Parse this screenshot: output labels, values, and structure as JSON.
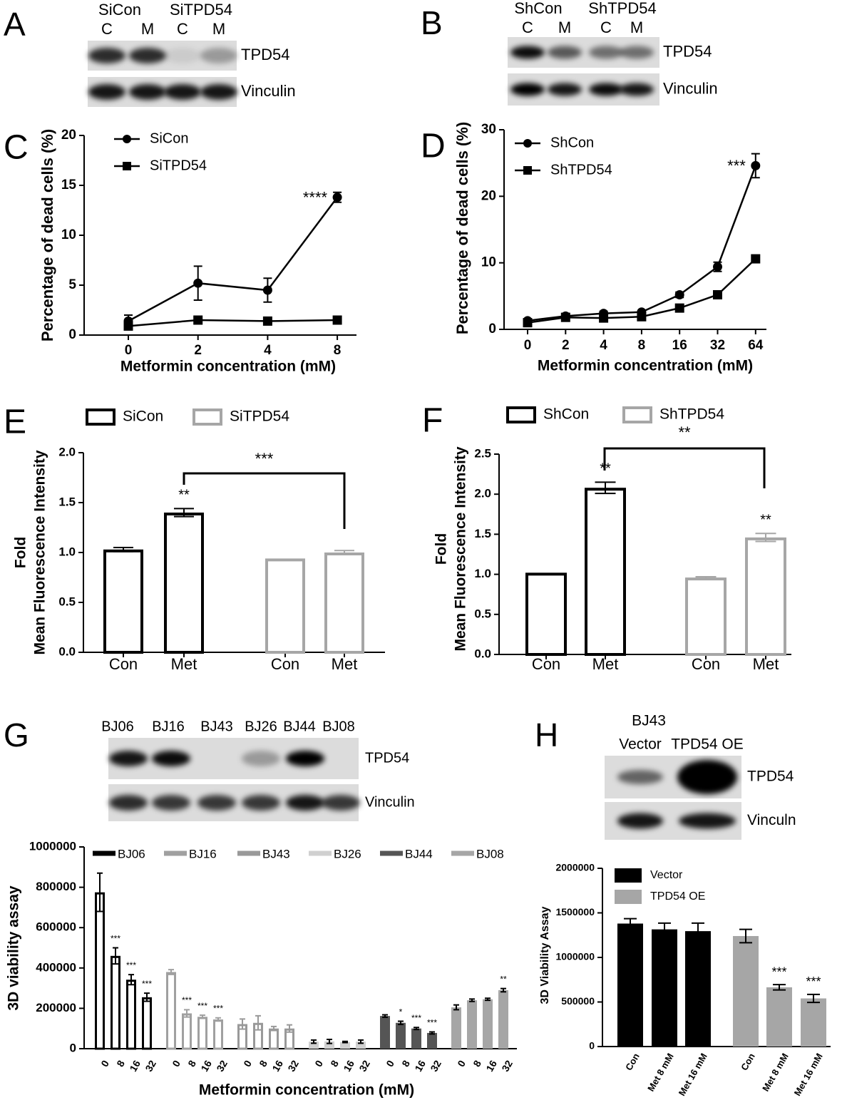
{
  "blots": [
    {
      "panel": "A",
      "headers": [
        "SiCon",
        "SiTPD54"
      ],
      "lanes": [
        "C",
        "M",
        "C",
        "M"
      ],
      "rows": [
        "TPD54",
        "Vinculin"
      ]
    },
    {
      "panel": "B",
      "headers": [
        "ShCon",
        "ShTPD54"
      ],
      "lanes": [
        "C",
        "M",
        "C",
        "M"
      ],
      "rows": [
        "TPD54",
        "Vinculin"
      ]
    },
    {
      "panel": "G",
      "lanes": [
        "BJ06",
        "BJ16",
        "BJ43",
        "BJ26",
        "BJ44",
        "BJ08"
      ],
      "rows": [
        "TPD54",
        "Vinculin"
      ]
    },
    {
      "panel": "H",
      "headers": [
        "BJ43"
      ],
      "lanes": [
        "Vector",
        "TPD54 OE"
      ],
      "rows": [
        "TPD54",
        "Vinculn"
      ]
    }
  ],
  "chart_data": [
    {
      "panel": "C",
      "type": "line",
      "y_label": "Percentage of dead cells (%)",
      "x_label": "Metformin concentration (mM)",
      "categories": [
        "0",
        "2",
        "4",
        "8"
      ],
      "ylim": [
        0,
        20
      ],
      "yticks": [
        0,
        5,
        10,
        15,
        20
      ],
      "series": [
        {
          "name": "SiCon",
          "color": "#000000",
          "marker": "circle",
          "values": [
            1.4,
            5.2,
            4.5,
            13.8
          ],
          "errors": [
            0.6,
            1.7,
            1.2,
            0.5
          ],
          "annotations": [
            null,
            null,
            null,
            "****"
          ]
        },
        {
          "name": "SiTPD54",
          "color": "#000000",
          "marker": "square",
          "values": [
            0.9,
            1.5,
            1.4,
            1.5
          ],
          "errors": [
            0.2,
            0.2,
            0.2,
            0.2
          ]
        }
      ]
    },
    {
      "panel": "D",
      "type": "line",
      "y_label": "Percentage of dead cells (%)",
      "x_label": "Metformin concentration (mM)",
      "categories": [
        "0",
        "2",
        "4",
        "8",
        "16",
        "32",
        "64"
      ],
      "ylim": [
        0,
        30
      ],
      "yticks": [
        0,
        10,
        20,
        30
      ],
      "series": [
        {
          "name": "ShCon",
          "color": "#000000",
          "marker": "circle",
          "values": [
            1.3,
            2.0,
            2.4,
            2.6,
            5.2,
            9.4,
            24.6
          ],
          "errors": [
            0.3,
            0.4,
            0.3,
            0.2,
            0.4,
            0.7,
            1.8
          ],
          "annotations": [
            null,
            null,
            null,
            null,
            null,
            null,
            "***"
          ]
        },
        {
          "name": "ShTPD54",
          "color": "#000000",
          "marker": "square",
          "values": [
            1.0,
            1.8,
            1.7,
            1.9,
            3.2,
            5.2,
            10.6
          ],
          "errors": [
            0.2,
            0.3,
            0.3,
            0.2,
            0.3,
            0.3,
            0.3
          ]
        }
      ]
    },
    {
      "panel": "E",
      "type": "bar",
      "y_label": [
        "Fold",
        "Mean Fluorescence Intensity"
      ],
      "categories": [
        "Con",
        "Met",
        "Con",
        "Met"
      ],
      "ylim": [
        0,
        2.0
      ],
      "yticks": [
        {
          "value": 0,
          "label": "0.0"
        },
        0.5,
        {
          "value": 1,
          "label": "1.0"
        },
        1.5,
        {
          "value": 2,
          "label": "2.0"
        }
      ],
      "bracket_label": "***",
      "series": [
        {
          "name": "SiCon",
          "color": "#000000",
          "filled": false,
          "values": [
            1.03,
            1.4,
            null,
            null
          ],
          "errors": [
            0.02,
            0.04,
            null,
            null
          ],
          "annotations": [
            null,
            "**",
            null,
            null
          ]
        },
        {
          "name": "SiTPD54",
          "color": "#a6a6a6",
          "filled": false,
          "values": [
            null,
            null,
            0.94,
            1.0
          ],
          "errors": [
            null,
            null,
            null,
            0.02
          ]
        }
      ]
    },
    {
      "panel": "F",
      "type": "bar",
      "y_label": [
        "Fold",
        "Mean Fluorescence Intensity"
      ],
      "categories": [
        "Con",
        "Met",
        "Con",
        "Met"
      ],
      "ylim": [
        0,
        2.5
      ],
      "yticks": [
        {
          "value": 0,
          "label": "0.0"
        },
        0.5,
        {
          "value": 1,
          "label": "1.0"
        },
        1.5,
        {
          "value": 2,
          "label": "2.0"
        },
        2.5
      ],
      "bracket_label": "**",
      "series": [
        {
          "name": "ShCon",
          "color": "#000000",
          "filled": false,
          "values": [
            1.02,
            2.08,
            null,
            null
          ],
          "errors": [
            null,
            0.07,
            null,
            null
          ],
          "annotations": [
            null,
            "**",
            null,
            null
          ]
        },
        {
          "name": "ShTPD54",
          "color": "#a6a6a6",
          "filled": false,
          "values": [
            null,
            null,
            0.96,
            1.46
          ],
          "errors": [
            null,
            null,
            0.01,
            0.05
          ],
          "annotations": [
            null,
            null,
            null,
            "**"
          ]
        }
      ]
    },
    {
      "type": "bar",
      "y_label": "3D viability assay",
      "x_label": "Metformin concentration (mM)",
      "categories": [
        "0",
        "8",
        "16",
        "32"
      ],
      "ylim": [
        0,
        1000000
      ],
      "yticks": [
        0,
        200000,
        400000,
        600000,
        800000,
        1000000
      ],
      "series": [
        {
          "name": "BJ06",
          "color": "#000000",
          "filled": false,
          "values": [
            775000,
            460000,
            342000,
            255000
          ],
          "errors": [
            95000,
            40000,
            25000,
            20000
          ],
          "annotations": [
            null,
            "***",
            "***",
            "***"
          ]
        },
        {
          "name": "BJ16",
          "color": "#a0a0a0",
          "filled": false,
          "values": [
            380000,
            175000,
            158000,
            145000
          ],
          "errors": [
            12000,
            18000,
            8000,
            8000
          ],
          "annotations": [
            null,
            "***",
            "***",
            "***"
          ]
        },
        {
          "name": "BJ43",
          "color": "#999999",
          "filled": false,
          "values": [
            122000,
            128000,
            100000,
            100000
          ],
          "errors": [
            25000,
            35000,
            10000,
            18000
          ]
        },
        {
          "name": "BJ26",
          "color": "#d0d0d0",
          "filled": true,
          "values": [
            35000,
            36000,
            33000,
            35000
          ],
          "errors": [
            8000,
            10000,
            3000,
            8000
          ]
        },
        {
          "name": "BJ44",
          "color": "#555555",
          "filled": true,
          "values": [
            162000,
            128000,
            100000,
            78000
          ],
          "errors": [
            6000,
            8000,
            5000,
            5000
          ],
          "annotations": [
            null,
            "*",
            "***",
            "***"
          ]
        },
        {
          "name": "BJ08",
          "color": "#a6a6a6",
          "filled": true,
          "values": [
            205000,
            240000,
            245000,
            290000
          ],
          "errors": [
            12000,
            6000,
            5000,
            8000
          ],
          "annotations": [
            null,
            null,
            null,
            "**"
          ]
        }
      ]
    },
    {
      "type": "bar",
      "y_label": "3D Viability Assay",
      "categories": [
        "Con",
        "Met 8 mM",
        "Met 16 mM",
        "Con",
        "Met 8 mM",
        "Met 16 mM"
      ],
      "ylim": [
        0,
        2000000
      ],
      "yticks": [
        0,
        500000,
        1000000,
        1500000,
        2000000
      ],
      "series": [
        {
          "name": "Vector",
          "color": "#000000",
          "filled": true,
          "values": [
            1380000,
            1315000,
            1295000,
            null,
            null,
            null
          ],
          "errors": [
            55000,
            70000,
            90000,
            null,
            null,
            null
          ]
        },
        {
          "name": "TPD54 OE",
          "color": "#a6a6a6",
          "filled": true,
          "values": [
            null,
            null,
            null,
            1240000,
            665000,
            540000
          ],
          "errors": [
            null,
            null,
            null,
            75000,
            30000,
            45000
          ],
          "annotations": [
            null,
            null,
            null,
            null,
            "***",
            "***"
          ]
        }
      ]
    }
  ]
}
